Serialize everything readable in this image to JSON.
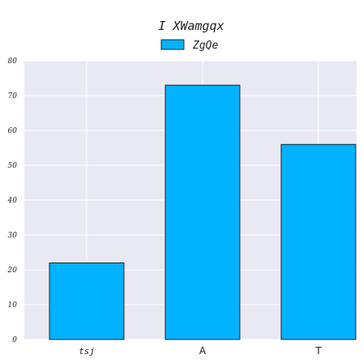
{
  "chart_data": {
    "type": "bar",
    "title": "I  XWamgqx",
    "categories": [
      "tsj",
      "A",
      "T"
    ],
    "series": [
      {
        "name": "ZgQe",
        "values": [
          22,
          73,
          56
        ],
        "color": "#00b2ff"
      }
    ],
    "ylim": [
      0,
      80
    ],
    "yticks": [
      0,
      10,
      20,
      30,
      40,
      50,
      60,
      70,
      80
    ],
    "xlabel": "",
    "ylabel": "",
    "grid": true,
    "plot_background": "#e8e9f3",
    "bar_edge_color": "#000000",
    "legend_placement": "top-center"
  }
}
